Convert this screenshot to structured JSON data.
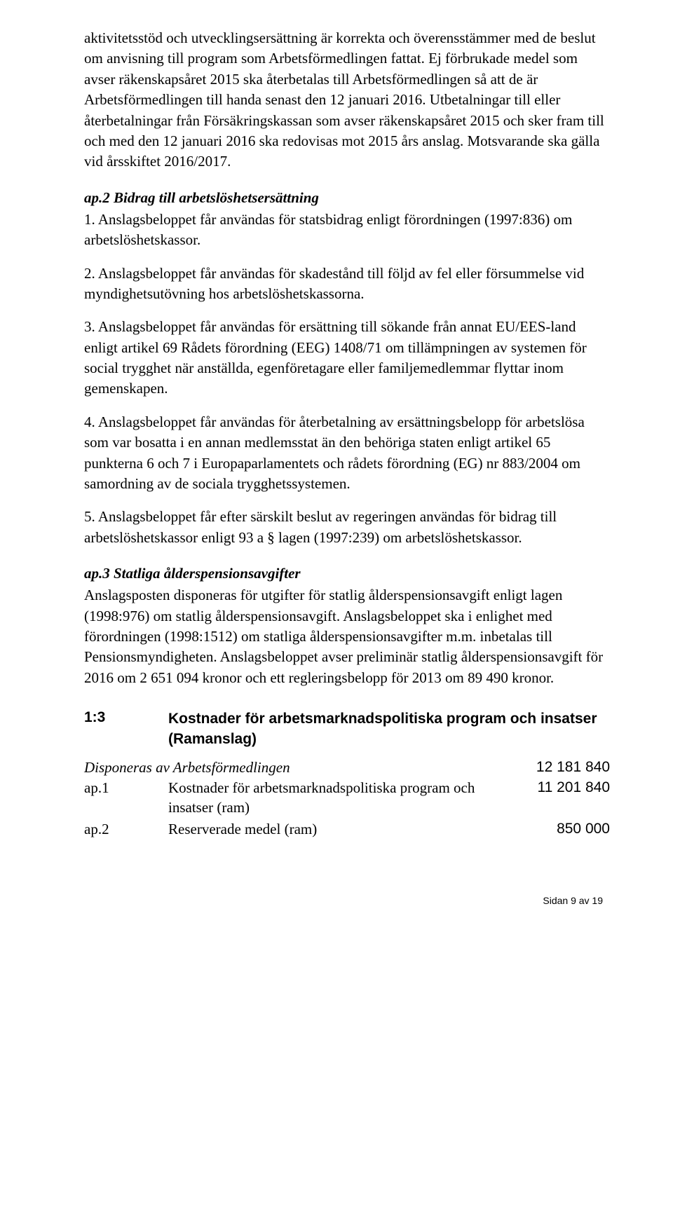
{
  "para1": "aktivitetsstöd och utvecklingsersättning är korrekta och överensstämmer med de beslut om anvisning till program som Arbetsförmedlingen fattat. Ej förbrukade medel som avser räkenskapsåret 2015 ska återbetalas till Arbetsförmedlingen så att de är Arbetsförmedlingen till handa senast den 12 januari 2016. Utbetalningar till eller återbetalningar från Försäkringskassan som avser räkenskapsåret 2015 och sker fram till och med den 12 januari 2016 ska redovisas mot 2015 års anslag. Motsvarande ska gälla vid årsskiftet 2016/2017.",
  "ap2": {
    "heading": "ap.2 Bidrag till arbetslöshetsersättning",
    "item1": "1. Anslagsbeloppet får användas för statsbidrag enligt förordningen (1997:836) om arbetslöshetskassor.",
    "item2": "2. Anslagsbeloppet får användas för skadestånd till följd av fel eller försummelse vid myndighetsutövning hos arbetslöshetskassorna.",
    "item3": "3. Anslagsbeloppet får användas för ersättning till sökande från annat EU/EES-land enligt artikel 69 Rådets förordning (EEG) 1408/71 om tillämpningen av systemen för social trygghet när anställda, egenföretagare eller familjemedlemmar flyttar inom gemenskapen.",
    "item4": "4. Anslagsbeloppet får användas för återbetalning av ersättningsbelopp för arbetslösa som var bosatta i en annan medlemsstat än den behöriga staten enligt artikel 65 punkterna 6 och 7 i Europaparlamentets och rådets förordning (EG) nr 883/2004 om samordning av de sociala trygghetssystemen.",
    "item5": "5. Anslagsbeloppet får efter särskilt beslut av regeringen användas för bidrag till arbetslöshetskassor enligt 93 a § lagen (1997:239) om arbetslöshetskassor."
  },
  "ap3": {
    "heading": "ap.3 Statliga ålderspensionsavgifter",
    "body": "Anslagsposten disponeras för utgifter för statlig ålderspensionsavgift enligt lagen (1998:976) om statlig ålderspensionsavgift. Anslagsbeloppet ska i enlighet med förordningen (1998:1512) om statliga ålderspensionsavgifter m.m. inbetalas till Pensionsmyndigheten. Anslagsbeloppet avser preliminär statlig ålderspensionsavgift för 2016 om 2 651 094 kronor och ett regleringsbelopp för 2013 om 89 490 kronor."
  },
  "section": {
    "num": "1:3",
    "title": "Kostnader för arbetsmarknadspolitiska program och insatser (Ramanslag)",
    "disp_label": "Disponeras av Arbetsförmedlingen",
    "disp_amount": "12 181 840",
    "rows": [
      {
        "label": "ap.1",
        "text": "Kostnader för arbetsmarknadspolitiska program och insatser (ram)",
        "amount": "11 201 840"
      },
      {
        "label": "ap.2",
        "text": "Reserverade medel (ram)",
        "amount": "850 000"
      }
    ]
  },
  "footer": "Sidan 9 av 19"
}
